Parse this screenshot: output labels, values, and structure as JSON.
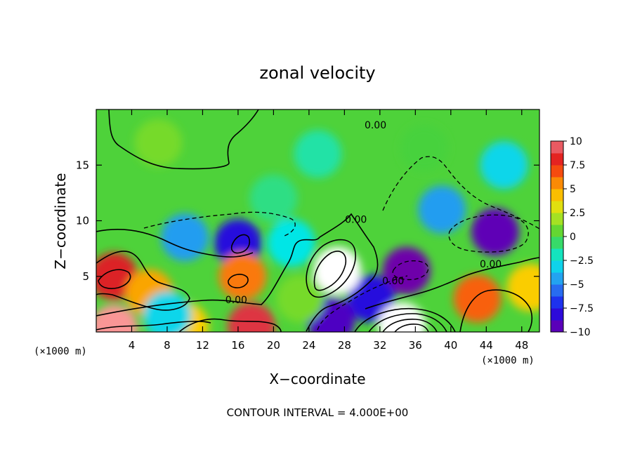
{
  "chart_data": {
    "type": "heatmap",
    "title": "zonal velocity",
    "xlabel": "X−coordinate",
    "ylabel": "Z−coordinate",
    "x_unit": "(×1000 m)",
    "x_unit_right": "(×1000 m)",
    "xlim": [
      0,
      50
    ],
    "ylim": [
      0,
      20
    ],
    "x_ticks": [
      "4",
      "8",
      "12",
      "16",
      "20",
      "24",
      "28",
      "32",
      "36",
      "40",
      "44",
      "48"
    ],
    "y_ticks": [
      "5",
      "10",
      "15"
    ],
    "colorbar_ticks": [
      "10",
      "7.5",
      "5",
      "2.5",
      "0",
      "−2.5",
      "−5",
      "−7.5",
      "−10"
    ],
    "colorbar_range": [
      -10,
      10
    ],
    "footer": "CONTOUR INTERVAL = 4.000E+00",
    "contour_labels": [
      {
        "text": "0.00",
        "x": 31.5,
        "y": 18.3
      },
      {
        "text": "0.00",
        "x": 29.3,
        "y": 9.8
      },
      {
        "text": "0.00",
        "x": 44.5,
        "y": 5.8
      },
      {
        "text": "0.00",
        "x": 33.5,
        "y": 4.3
      },
      {
        "text": "0.00",
        "x": 15.8,
        "y": 2.6
      }
    ],
    "features": [
      {
        "x": 37.0,
        "z": 16.5,
        "value": 0.0
      },
      {
        "x": 7.0,
        "z": 17.0,
        "value": 1.0
      },
      {
        "x": 25.0,
        "z": 16.0,
        "value": -1.5
      },
      {
        "x": 20.0,
        "z": 12.0,
        "value": -1.0
      },
      {
        "x": 46.0,
        "z": 15.0,
        "value": -3.0
      },
      {
        "x": 39.0,
        "z": 11.0,
        "value": -4.5
      },
      {
        "x": 45.0,
        "z": 9.0,
        "value": -9.5
      },
      {
        "x": 16.0,
        "z": 8.0,
        "value": -8.0
      },
      {
        "x": 10.0,
        "z": 8.5,
        "value": -4.5
      },
      {
        "x": 22.0,
        "z": 8.0,
        "value": -2.5
      },
      {
        "x": 35.0,
        "z": 5.5,
        "value": -10.0
      },
      {
        "x": 31.0,
        "z": 3.0,
        "value": -8.0
      },
      {
        "x": 26.5,
        "z": 1.0,
        "value": -9.0
      },
      {
        "x": 27.2,
        "z": 5.5,
        "value": 10.5
      },
      {
        "x": 2.0,
        "z": 5.0,
        "value": 8.5
      },
      {
        "x": 6.0,
        "z": 3.5,
        "value": 5.0
      },
      {
        "x": 16.5,
        "z": 5.0,
        "value": 6.0
      },
      {
        "x": 43.0,
        "z": 3.0,
        "value": 6.5
      },
      {
        "x": 34.5,
        "z": 0.5,
        "value": 12.0
      },
      {
        "x": 17.5,
        "z": 0.5,
        "value": 9.0
      },
      {
        "x": 2.0,
        "z": 0.3,
        "value": 10.0
      },
      {
        "x": 10.0,
        "z": 0.5,
        "value": 4.0
      },
      {
        "x": 49.0,
        "z": 4.0,
        "value": 4.0
      },
      {
        "x": 8.0,
        "z": 1.5,
        "value": -3.0
      },
      {
        "x": 23.0,
        "z": 3.0,
        "value": 1.0
      }
    ]
  }
}
